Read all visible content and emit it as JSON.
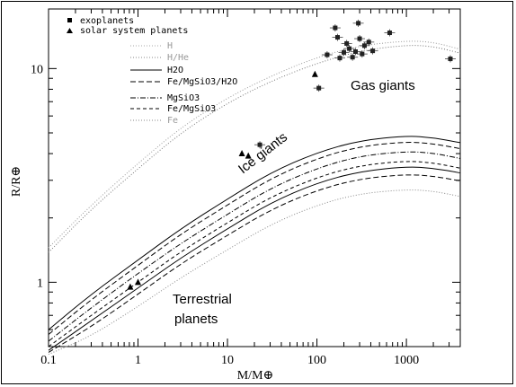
{
  "chart_data": {
    "type": "scatter",
    "xlabel": "M/M⊕",
    "ylabel": "R/R⊕",
    "xscale": "log",
    "yscale": "log",
    "xlim": [
      0.1,
      4000
    ],
    "ylim": [
      0.5,
      19
    ],
    "x_ticks": [
      {
        "value": 0.1,
        "label": "0.1"
      },
      {
        "value": 1,
        "label": "1"
      },
      {
        "value": 10,
        "label": "10"
      },
      {
        "value": 100,
        "label": "100"
      },
      {
        "value": 1000,
        "label": "1000"
      }
    ],
    "y_ticks": [
      {
        "value": 1,
        "label": "1"
      },
      {
        "value": 10,
        "label": "10"
      }
    ],
    "legend_position": "top-left",
    "legend": [
      {
        "name": "exoplanets",
        "marker": "square",
        "color": "#000000"
      },
      {
        "name": "solar system planets",
        "marker": "triangle",
        "color": "#000000"
      },
      {
        "name": "H",
        "style": "dotted",
        "color": "#aaaaaa"
      },
      {
        "name": "H/He",
        "style": "dotted",
        "color": "#888888"
      },
      {
        "name": "H2O",
        "style": "solid",
        "color": "#000000"
      },
      {
        "name": "Fe/MgSiO3/H2O",
        "style": "dashed",
        "color": "#000000"
      },
      {
        "name": "MgSiO3",
        "style": "dashdot",
        "color": "#000000"
      },
      {
        "name": "Fe/MgSiO3",
        "style": "dashed",
        "color": "#000000"
      },
      {
        "name": "Fe",
        "style": "dotted",
        "color": "#888888"
      }
    ],
    "curves": [
      {
        "name": "H",
        "color": "#999999",
        "dash": "1,2",
        "x": [
          0.1,
          0.3,
          1,
          3,
          10,
          30,
          100,
          300,
          1000,
          2000,
          4000
        ],
        "y": [
          1.45,
          2.3,
          3.6,
          5.3,
          7.3,
          9.2,
          11.3,
          12.8,
          13.5,
          13.3,
          12.3
        ]
      },
      {
        "name": "H/He",
        "color": "#777777",
        "dash": "1,2",
        "x": [
          0.1,
          0.3,
          1,
          3,
          10,
          30,
          100,
          300,
          1000,
          2000,
          4000
        ],
        "y": [
          1.38,
          2.2,
          3.4,
          5.0,
          6.9,
          8.7,
          10.6,
          12.1,
          12.9,
          12.7,
          11.8
        ]
      },
      {
        "name": "H2O",
        "color": "#000000",
        "dash": "",
        "x": [
          0.1,
          0.3,
          1,
          3,
          10,
          30,
          100,
          300,
          1000,
          2000,
          4000
        ],
        "y": [
          0.6,
          0.88,
          1.27,
          1.78,
          2.45,
          3.25,
          4.05,
          4.6,
          4.85,
          4.75,
          4.5
        ]
      },
      {
        "name": "Fe/MgSiO3/H2O",
        "color": "#000000",
        "dash": "6,3",
        "x": [
          0.1,
          0.3,
          1,
          3,
          10,
          30,
          100,
          300,
          1000,
          2000,
          4000
        ],
        "y": [
          0.57,
          0.83,
          1.2,
          1.68,
          2.3,
          3.05,
          3.8,
          4.32,
          4.55,
          4.45,
          4.22
        ]
      },
      {
        "name": "MgSiO3",
        "color": "#000000",
        "dash": "6,2,1,2",
        "x": [
          0.1,
          0.3,
          1,
          3,
          10,
          30,
          100,
          300,
          1000,
          2000,
          4000
        ],
        "y": [
          0.53,
          0.76,
          1.1,
          1.52,
          2.08,
          2.75,
          3.42,
          3.9,
          4.1,
          4.02,
          3.8
        ]
      },
      {
        "name": "Fe/MgSiO3",
        "color": "#000000",
        "dash": "4,3",
        "x": [
          0.1,
          0.3,
          1,
          3,
          10,
          30,
          100,
          300,
          1000,
          2000,
          4000
        ],
        "y": [
          0.5,
          0.7,
          1.0,
          1.39,
          1.9,
          2.5,
          3.1,
          3.52,
          3.7,
          3.62,
          3.42
        ]
      },
      {
        "name": "H2O b",
        "color": "#000000",
        "dash": "",
        "x": [
          0.1,
          0.3,
          1,
          3,
          10,
          30,
          100,
          300,
          1000,
          2000,
          4000
        ],
        "y": [
          0.48,
          0.66,
          0.94,
          1.3,
          1.78,
          2.35,
          2.92,
          3.3,
          3.48,
          3.42,
          3.25
        ]
      },
      {
        "name": "Fe/MgSiO3/H2O b",
        "color": "#000000",
        "dash": "6,3",
        "x": [
          0.1,
          0.3,
          1,
          3,
          10,
          30,
          100,
          300,
          1000,
          2000,
          4000
        ],
        "y": [
          0.47,
          0.62,
          0.88,
          1.22,
          1.66,
          2.18,
          2.7,
          3.05,
          3.2,
          3.14,
          2.98
        ]
      },
      {
        "name": "Fe",
        "color": "#888888",
        "dash": "1,2",
        "x": [
          0.1,
          0.3,
          1,
          3,
          10,
          30,
          100,
          300,
          1000,
          2000,
          4000
        ],
        "y": [
          0.46,
          0.56,
          0.77,
          1.05,
          1.42,
          1.86,
          2.3,
          2.6,
          2.72,
          2.67,
          2.52
        ]
      }
    ],
    "exoplanets": [
      {
        "x": 105,
        "y": 8.1
      },
      {
        "x": 130,
        "y": 11.6
      },
      {
        "x": 160,
        "y": 15.5
      },
      {
        "x": 170,
        "y": 14.0
      },
      {
        "x": 180,
        "y": 11.2
      },
      {
        "x": 200,
        "y": 11.9
      },
      {
        "x": 215,
        "y": 13.1
      },
      {
        "x": 230,
        "y": 12.4
      },
      {
        "x": 250,
        "y": 11.3
      },
      {
        "x": 270,
        "y": 12.0
      },
      {
        "x": 290,
        "y": 16.3
      },
      {
        "x": 300,
        "y": 13.8
      },
      {
        "x": 320,
        "y": 11.7
      },
      {
        "x": 340,
        "y": 12.8
      },
      {
        "x": 380,
        "y": 13.3
      },
      {
        "x": 420,
        "y": 12.1
      },
      {
        "x": 650,
        "y": 14.7
      },
      {
        "x": 3100,
        "y": 11.1
      },
      {
        "x": 23,
        "y": 4.4
      }
    ],
    "solar_system": [
      {
        "x": 0.82,
        "y": 0.95
      },
      {
        "x": 1.0,
        "y": 1.0
      },
      {
        "x": 14.5,
        "y": 4.0
      },
      {
        "x": 17.1,
        "y": 3.9
      },
      {
        "x": 95,
        "y": 9.4
      }
    ],
    "annotations": [
      {
        "text": "Gas giants"
      },
      {
        "text": "Ice giants"
      },
      {
        "text": "Terrestrial"
      },
      {
        "text": "planets"
      }
    ]
  }
}
